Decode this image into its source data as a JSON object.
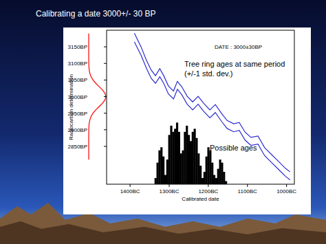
{
  "chart_data": {
    "type": "line",
    "title": "Calibrating a date 3000+/- 30 BP",
    "x_label": "Calibrated date",
    "y_label": "Radiocarbon determination",
    "xlim": [
      1460,
      980
    ],
    "xticks": [
      {
        "value": 1400,
        "label": "1400BC"
      },
      {
        "value": 1300,
        "label": "1300BC"
      },
      {
        "value": 1200,
        "label": "1200BC"
      },
      {
        "value": 1100,
        "label": "1100BC"
      },
      {
        "value": 1000,
        "label": "1000BC"
      }
    ],
    "ylim": [
      2736,
      3200
    ],
    "yticks": [
      {
        "value": 3150,
        "label": "3150BP"
      },
      {
        "value": 3100,
        "label": "3100BP"
      },
      {
        "value": 3050,
        "label": "3050BP"
      },
      {
        "value": 3000,
        "label": "3000BP"
      },
      {
        "value": 2950,
        "label": "2950BP"
      },
      {
        "value": 2900,
        "label": "2900BP"
      },
      {
        "value": 2850,
        "label": "2850BP"
      }
    ],
    "y2lim": [
      0,
      2.5
    ],
    "annotations": [
      {
        "text": "DATE : 3000±30BP"
      },
      {
        "text": [
          "Tree ring ages at same period",
          "(+/-1 std. dev.)"
        ]
      },
      {
        "text": "Possible ages"
      }
    ],
    "series": [
      {
        "type": "line",
        "color": "#2b2bd0",
        "x": [
          1389,
          1372,
          1358,
          1346,
          1335,
          1324,
          1314,
          1302,
          1289,
          1279,
          1268,
          1254,
          1240,
          1226,
          1212,
          1196,
          1182,
          1166,
          1152,
          1135,
          1121,
          1106,
          1091,
          1073,
          1056,
          1038,
          1020,
          1003,
          991
        ],
        "values": [
          3191,
          3150,
          3109,
          3080,
          3063,
          3084,
          3063,
          3032,
          3017,
          3046,
          3030,
          3001,
          2984,
          3001,
          2980,
          2960,
          2976,
          2949,
          2928,
          2918,
          2922,
          2893,
          2877,
          2881,
          2846,
          2825,
          2804,
          2784,
          2773
        ]
      },
      {
        "type": "line",
        "color": "#2b2bd0",
        "x": [
          1389,
          1372,
          1358,
          1346,
          1335,
          1324,
          1314,
          1302,
          1289,
          1279,
          1268,
          1254,
          1240,
          1226,
          1212,
          1196,
          1182,
          1166,
          1152,
          1135,
          1121,
          1106,
          1091,
          1073,
          1056,
          1038,
          1020,
          1003,
          991
        ],
        "values": [
          3165,
          3125,
          3085,
          3055,
          3040,
          3060,
          3040,
          3008,
          2993,
          3022,
          3006,
          2977,
          2960,
          2977,
          2956,
          2936,
          2952,
          2925,
          2904,
          2894,
          2898,
          2869,
          2853,
          2857,
          2822,
          2801,
          2780,
          2760,
          2749
        ]
      },
      {
        "type": "bar",
        "axis": "y2",
        "color": "#000000",
        "x": [
          1335,
          1330,
          1325,
          1320,
          1315,
          1310,
          1305,
          1300,
          1295,
          1290,
          1285,
          1280,
          1275,
          1270,
          1265,
          1260,
          1255,
          1250,
          1245,
          1240,
          1235,
          1230,
          1225,
          1220,
          1215,
          1210,
          1205,
          1200,
          1195,
          1190,
          1185,
          1180,
          1175,
          1170,
          1165,
          1160,
          1155,
          1150
        ],
        "values": [
          0.1,
          0.35,
          0.55,
          0.6,
          0.45,
          0.15,
          0.4,
          0.8,
          0.95,
          0.85,
          0.9,
          1.0,
          0.85,
          0.5,
          0.55,
          0.85,
          0.95,
          0.8,
          0.7,
          0.85,
          0.9,
          0.75,
          0.5,
          0.3,
          0.1,
          0.2,
          0.45,
          0.6,
          0.55,
          0.35,
          0.15,
          0.1,
          0.25,
          0.4,
          0.35,
          0.2,
          0.05,
          0.0
        ]
      }
    ],
    "measurement": {
      "color": "#ff0000",
      "xlim": [
        0,
        1
      ],
      "y": [
        3190,
        3150,
        3120,
        3100,
        3090,
        3080,
        3070,
        3060,
        3050,
        3040,
        3030,
        3020,
        3010,
        3000,
        2990,
        2980,
        2970,
        2960,
        2950,
        2940,
        2930,
        2920,
        2910,
        2900,
        2880,
        2850,
        2810
      ],
      "values": [
        0,
        0,
        0,
        0.004,
        0.011,
        0.029,
        0.066,
        0.135,
        0.249,
        0.411,
        0.607,
        0.801,
        0.946,
        1,
        0.946,
        0.801,
        0.607,
        0.411,
        0.249,
        0.135,
        0.066,
        0.029,
        0.011,
        0.004,
        0,
        0,
        0
      ]
    }
  }
}
